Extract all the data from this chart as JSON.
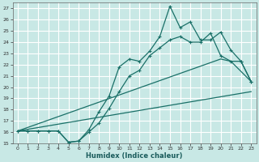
{
  "xlabel": "Humidex (Indice chaleur)",
  "background_color": "#c8e8e5",
  "grid_color": "#ffffff",
  "line_color": "#1a7068",
  "xlim": [
    -0.5,
    23.5
  ],
  "ylim": [
    15.0,
    27.5
  ],
  "yticks": [
    15,
    16,
    17,
    18,
    19,
    20,
    21,
    22,
    23,
    24,
    25,
    26,
    27
  ],
  "xticks": [
    0,
    1,
    2,
    3,
    4,
    5,
    6,
    7,
    8,
    9,
    10,
    11,
    12,
    13,
    14,
    15,
    16,
    17,
    18,
    19,
    20,
    21,
    22,
    23
  ],
  "jagged_x": [
    0,
    1,
    2,
    3,
    4,
    5,
    6,
    7,
    8,
    9,
    10,
    11,
    12,
    13,
    14,
    15,
    16,
    17,
    18,
    19,
    20,
    21,
    22,
    23
  ],
  "jagged_y": [
    16.1,
    16.1,
    16.1,
    16.1,
    16.1,
    15.1,
    15.2,
    16.2,
    17.8,
    19.2,
    21.8,
    22.5,
    22.3,
    23.2,
    24.5,
    27.2,
    25.3,
    25.8,
    24.2,
    24.2,
    24.9,
    23.3,
    22.3,
    20.5
  ],
  "smooth_x": [
    0,
    1,
    2,
    3,
    4,
    5,
    6,
    7,
    8,
    9,
    10,
    11,
    12,
    13,
    14,
    15,
    16,
    17,
    18,
    19,
    20,
    21,
    22,
    23
  ],
  "smooth_y": [
    16.1,
    16.1,
    16.1,
    16.1,
    16.1,
    15.1,
    15.2,
    16.0,
    16.8,
    18.1,
    19.6,
    21.0,
    21.5,
    22.8,
    23.5,
    24.2,
    24.5,
    24.0,
    24.0,
    24.8,
    22.8,
    22.3,
    22.3,
    20.5
  ],
  "line1_x": [
    0,
    20,
    21,
    23
  ],
  "line1_y": [
    16.1,
    22.5,
    22.3,
    20.5
  ],
  "line2_x": [
    0,
    23
  ],
  "line2_y": [
    16.1,
    19.6
  ]
}
